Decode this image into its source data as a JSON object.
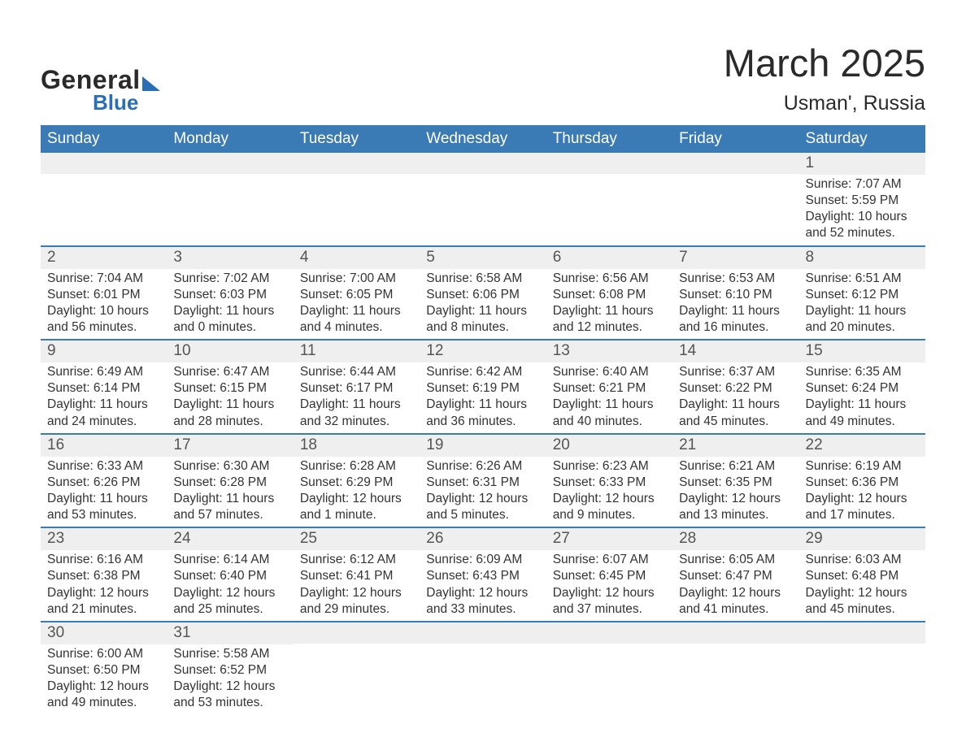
{
  "logo": {
    "general": "General",
    "blue": "Blue"
  },
  "title": {
    "month": "March 2025",
    "location": "Usman', Russia"
  },
  "colors": {
    "header_bg": "#3a7ab5",
    "header_text": "#ffffff",
    "day_number_bg": "#efefef",
    "day_number_text": "#555555",
    "body_text": "#333333",
    "logo_dark": "#2a2a2a",
    "logo_blue": "#2a6fb5",
    "row_divider": "#3a7ab5"
  },
  "weekdays": [
    "Sunday",
    "Monday",
    "Tuesday",
    "Wednesday",
    "Thursday",
    "Friday",
    "Saturday"
  ],
  "weeks": [
    [
      {
        "day": "",
        "sunrise": "",
        "sunset": "",
        "daylight": ""
      },
      {
        "day": "",
        "sunrise": "",
        "sunset": "",
        "daylight": ""
      },
      {
        "day": "",
        "sunrise": "",
        "sunset": "",
        "daylight": ""
      },
      {
        "day": "",
        "sunrise": "",
        "sunset": "",
        "daylight": ""
      },
      {
        "day": "",
        "sunrise": "",
        "sunset": "",
        "daylight": ""
      },
      {
        "day": "",
        "sunrise": "",
        "sunset": "",
        "daylight": ""
      },
      {
        "day": "1",
        "sunrise": "Sunrise: 7:07 AM",
        "sunset": "Sunset: 5:59 PM",
        "daylight": "Daylight: 10 hours and 52 minutes."
      }
    ],
    [
      {
        "day": "2",
        "sunrise": "Sunrise: 7:04 AM",
        "sunset": "Sunset: 6:01 PM",
        "daylight": "Daylight: 10 hours and 56 minutes."
      },
      {
        "day": "3",
        "sunrise": "Sunrise: 7:02 AM",
        "sunset": "Sunset: 6:03 PM",
        "daylight": "Daylight: 11 hours and 0 minutes."
      },
      {
        "day": "4",
        "sunrise": "Sunrise: 7:00 AM",
        "sunset": "Sunset: 6:05 PM",
        "daylight": "Daylight: 11 hours and 4 minutes."
      },
      {
        "day": "5",
        "sunrise": "Sunrise: 6:58 AM",
        "sunset": "Sunset: 6:06 PM",
        "daylight": "Daylight: 11 hours and 8 minutes."
      },
      {
        "day": "6",
        "sunrise": "Sunrise: 6:56 AM",
        "sunset": "Sunset: 6:08 PM",
        "daylight": "Daylight: 11 hours and 12 minutes."
      },
      {
        "day": "7",
        "sunrise": "Sunrise: 6:53 AM",
        "sunset": "Sunset: 6:10 PM",
        "daylight": "Daylight: 11 hours and 16 minutes."
      },
      {
        "day": "8",
        "sunrise": "Sunrise: 6:51 AM",
        "sunset": "Sunset: 6:12 PM",
        "daylight": "Daylight: 11 hours and 20 minutes."
      }
    ],
    [
      {
        "day": "9",
        "sunrise": "Sunrise: 6:49 AM",
        "sunset": "Sunset: 6:14 PM",
        "daylight": "Daylight: 11 hours and 24 minutes."
      },
      {
        "day": "10",
        "sunrise": "Sunrise: 6:47 AM",
        "sunset": "Sunset: 6:15 PM",
        "daylight": "Daylight: 11 hours and 28 minutes."
      },
      {
        "day": "11",
        "sunrise": "Sunrise: 6:44 AM",
        "sunset": "Sunset: 6:17 PM",
        "daylight": "Daylight: 11 hours and 32 minutes."
      },
      {
        "day": "12",
        "sunrise": "Sunrise: 6:42 AM",
        "sunset": "Sunset: 6:19 PM",
        "daylight": "Daylight: 11 hours and 36 minutes."
      },
      {
        "day": "13",
        "sunrise": "Sunrise: 6:40 AM",
        "sunset": "Sunset: 6:21 PM",
        "daylight": "Daylight: 11 hours and 40 minutes."
      },
      {
        "day": "14",
        "sunrise": "Sunrise: 6:37 AM",
        "sunset": "Sunset: 6:22 PM",
        "daylight": "Daylight: 11 hours and 45 minutes."
      },
      {
        "day": "15",
        "sunrise": "Sunrise: 6:35 AM",
        "sunset": "Sunset: 6:24 PM",
        "daylight": "Daylight: 11 hours and 49 minutes."
      }
    ],
    [
      {
        "day": "16",
        "sunrise": "Sunrise: 6:33 AM",
        "sunset": "Sunset: 6:26 PM",
        "daylight": "Daylight: 11 hours and 53 minutes."
      },
      {
        "day": "17",
        "sunrise": "Sunrise: 6:30 AM",
        "sunset": "Sunset: 6:28 PM",
        "daylight": "Daylight: 11 hours and 57 minutes."
      },
      {
        "day": "18",
        "sunrise": "Sunrise: 6:28 AM",
        "sunset": "Sunset: 6:29 PM",
        "daylight": "Daylight: 12 hours and 1 minute."
      },
      {
        "day": "19",
        "sunrise": "Sunrise: 6:26 AM",
        "sunset": "Sunset: 6:31 PM",
        "daylight": "Daylight: 12 hours and 5 minutes."
      },
      {
        "day": "20",
        "sunrise": "Sunrise: 6:23 AM",
        "sunset": "Sunset: 6:33 PM",
        "daylight": "Daylight: 12 hours and 9 minutes."
      },
      {
        "day": "21",
        "sunrise": "Sunrise: 6:21 AM",
        "sunset": "Sunset: 6:35 PM",
        "daylight": "Daylight: 12 hours and 13 minutes."
      },
      {
        "day": "22",
        "sunrise": "Sunrise: 6:19 AM",
        "sunset": "Sunset: 6:36 PM",
        "daylight": "Daylight: 12 hours and 17 minutes."
      }
    ],
    [
      {
        "day": "23",
        "sunrise": "Sunrise: 6:16 AM",
        "sunset": "Sunset: 6:38 PM",
        "daylight": "Daylight: 12 hours and 21 minutes."
      },
      {
        "day": "24",
        "sunrise": "Sunrise: 6:14 AM",
        "sunset": "Sunset: 6:40 PM",
        "daylight": "Daylight: 12 hours and 25 minutes."
      },
      {
        "day": "25",
        "sunrise": "Sunrise: 6:12 AM",
        "sunset": "Sunset: 6:41 PM",
        "daylight": "Daylight: 12 hours and 29 minutes."
      },
      {
        "day": "26",
        "sunrise": "Sunrise: 6:09 AM",
        "sunset": "Sunset: 6:43 PM",
        "daylight": "Daylight: 12 hours and 33 minutes."
      },
      {
        "day": "27",
        "sunrise": "Sunrise: 6:07 AM",
        "sunset": "Sunset: 6:45 PM",
        "daylight": "Daylight: 12 hours and 37 minutes."
      },
      {
        "day": "28",
        "sunrise": "Sunrise: 6:05 AM",
        "sunset": "Sunset: 6:47 PM",
        "daylight": "Daylight: 12 hours and 41 minutes."
      },
      {
        "day": "29",
        "sunrise": "Sunrise: 6:03 AM",
        "sunset": "Sunset: 6:48 PM",
        "daylight": "Daylight: 12 hours and 45 minutes."
      }
    ],
    [
      {
        "day": "30",
        "sunrise": "Sunrise: 6:00 AM",
        "sunset": "Sunset: 6:50 PM",
        "daylight": "Daylight: 12 hours and 49 minutes."
      },
      {
        "day": "31",
        "sunrise": "Sunrise: 5:58 AM",
        "sunset": "Sunset: 6:52 PM",
        "daylight": "Daylight: 12 hours and 53 minutes."
      },
      {
        "day": "",
        "sunrise": "",
        "sunset": "",
        "daylight": ""
      },
      {
        "day": "",
        "sunrise": "",
        "sunset": "",
        "daylight": ""
      },
      {
        "day": "",
        "sunrise": "",
        "sunset": "",
        "daylight": ""
      },
      {
        "day": "",
        "sunrise": "",
        "sunset": "",
        "daylight": ""
      },
      {
        "day": "",
        "sunrise": "",
        "sunset": "",
        "daylight": ""
      }
    ]
  ]
}
